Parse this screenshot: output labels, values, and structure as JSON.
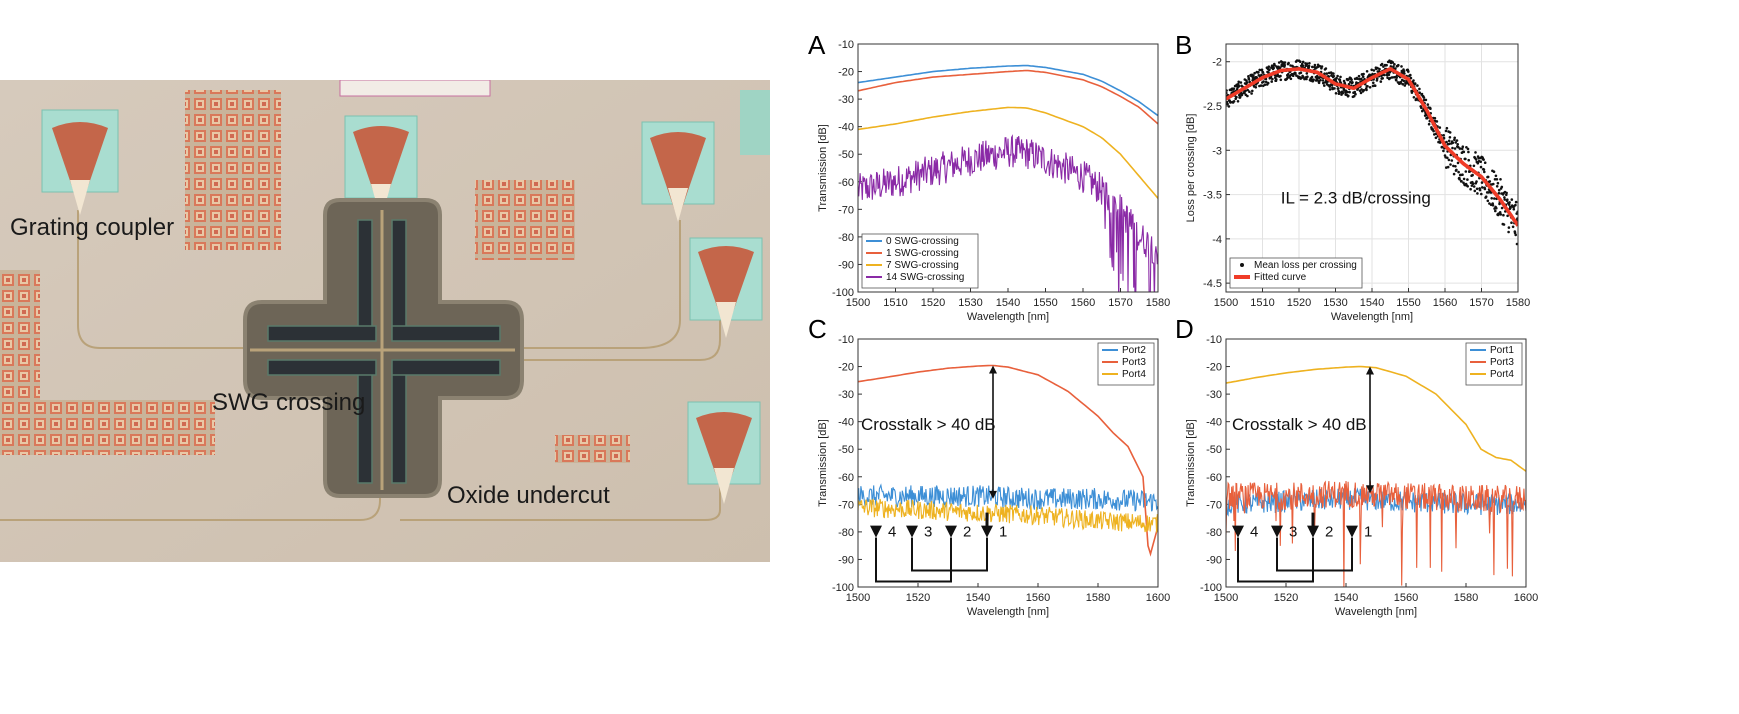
{
  "figure": {
    "photo_labels": {
      "grating_coupler": "Grating coupler",
      "swg_crossing": "SWG crossing",
      "oxide_undercut": "Oxide undercut"
    },
    "panels": [
      "A",
      "B",
      "C",
      "D"
    ]
  },
  "colors": {
    "blue": "#3d8fd6",
    "red": "#e8603c",
    "orange": "#eeb220",
    "purple": "#8a2aa6",
    "black": "#111111",
    "fit": "#f03c28"
  },
  "chart_data": [
    {
      "panel": "A",
      "type": "line",
      "xlabel": "Wavelength [nm]",
      "ylabel": "Transmission [dB]",
      "xlim": [
        1500,
        1580
      ],
      "ylim": [
        -100,
        -10
      ],
      "xticks": [
        "1500",
        "1510",
        "1520",
        "1530",
        "1540",
        "1550",
        "1560",
        "1570",
        "1580"
      ],
      "yticks": [
        "-10",
        "-20",
        "-30",
        "-40",
        "-50",
        "-60",
        "-70",
        "-80",
        "-90",
        "-100"
      ],
      "legend_position": "bottom-left",
      "series": [
        {
          "name": "0 SWG-crossing",
          "color": "#3d8fd6",
          "x": [
            1500,
            1510,
            1520,
            1530,
            1540,
            1545,
            1550,
            1560,
            1565,
            1570,
            1575,
            1580
          ],
          "y": [
            -24,
            -22,
            -20,
            -18.8,
            -18,
            -17.8,
            -18.5,
            -21,
            -23.5,
            -27,
            -31,
            -36
          ]
        },
        {
          "name": "1 SWG-crossing",
          "color": "#e8603c",
          "x": [
            1500,
            1510,
            1520,
            1530,
            1540,
            1545,
            1550,
            1560,
            1565,
            1570,
            1575,
            1580
          ],
          "y": [
            -27,
            -24,
            -22,
            -21,
            -20,
            -19.6,
            -20.3,
            -23,
            -25.5,
            -29,
            -33,
            -39
          ]
        },
        {
          "name": "7 SWG-crossing",
          "color": "#eeb220",
          "x": [
            1500,
            1510,
            1520,
            1530,
            1540,
            1545,
            1550,
            1560,
            1565,
            1570,
            1575,
            1580
          ],
          "y": [
            -41,
            -39,
            -36.5,
            -34.5,
            -33,
            -33.2,
            -35,
            -40,
            -44,
            -50,
            -58,
            -66
          ]
        },
        {
          "name": "14 SWG-crossing",
          "color": "#8a2aa6",
          "x": [
            1500,
            1510,
            1520,
            1530,
            1540,
            1545,
            1550,
            1560,
            1565,
            1570,
            1575,
            1580
          ],
          "y": [
            -63,
            -60,
            -56,
            -52,
            -49,
            -49.5,
            -52,
            -58,
            -63,
            -70,
            -80,
            -85
          ],
          "noise": 6
        }
      ]
    },
    {
      "panel": "B",
      "type": "scatter",
      "xlabel": "Wavelength [nm]",
      "ylabel": "Loss per crossing [dB]",
      "xlim": [
        1500,
        1580
      ],
      "ylim": [
        -4.6,
        -1.8
      ],
      "xticks": [
        "1500",
        "1510",
        "1520",
        "1530",
        "1540",
        "1550",
        "1560",
        "1570",
        "1580"
      ],
      "yticks": [
        "-2",
        "-2.5",
        "-3",
        "-3.5",
        "-4",
        "-4.5"
      ],
      "yticks_values": [
        -2,
        -2.5,
        -3,
        -3.5,
        -4,
        -4.5
      ],
      "grid": true,
      "legend_position": "bottom-left",
      "annotation": "IL = 2.3 dB/crossing",
      "series": [
        {
          "name": "Mean loss per crossing",
          "color": "#111111",
          "marker": "dot"
        },
        {
          "name": "Fitted curve",
          "color": "#f03c28",
          "x": [
            1500,
            1505,
            1510,
            1515,
            1520,
            1525,
            1530,
            1535,
            1540,
            1545,
            1550,
            1555,
            1560,
            1565,
            1570,
            1575,
            1580
          ],
          "y": [
            -2.42,
            -2.3,
            -2.18,
            -2.1,
            -2.08,
            -2.12,
            -2.25,
            -2.3,
            -2.18,
            -2.08,
            -2.2,
            -2.55,
            -2.95,
            -3.15,
            -3.3,
            -3.55,
            -3.85
          ]
        }
      ]
    },
    {
      "panel": "C",
      "type": "line",
      "xlabel": "Wavelength [nm]",
      "ylabel": "Transmission [dB]",
      "xlim": [
        1500,
        1600
      ],
      "ylim": [
        -100,
        -10
      ],
      "xticks": [
        "1500",
        "1520",
        "1540",
        "1560",
        "1580",
        "1600"
      ],
      "yticks": [
        "-10",
        "-20",
        "-30",
        "-40",
        "-50",
        "-60",
        "-70",
        "-80",
        "-90",
        "-100"
      ],
      "legend_position": "top-right",
      "annotation": "Crosstalk > 40 dB",
      "ports_diagram": [
        "4",
        "3",
        "2",
        "1"
      ],
      "series": [
        {
          "name": "Port2",
          "color": "#3d8fd6",
          "x": [
            1500,
            1520,
            1540,
            1560,
            1580,
            1600
          ],
          "y": [
            -67,
            -67,
            -67,
            -68,
            -68,
            -69
          ],
          "noise": 4
        },
        {
          "name": "Port3",
          "color": "#e8603c",
          "x": [
            1500,
            1510,
            1520,
            1530,
            1540,
            1545,
            1550,
            1560,
            1570,
            1580,
            1585,
            1590,
            1595,
            1597,
            1600
          ],
          "y": [
            -25.5,
            -23.8,
            -22,
            -20.6,
            -19.8,
            -19.6,
            -20.2,
            -23,
            -29,
            -38,
            -44,
            -49,
            -60,
            -90,
            -78
          ]
        },
        {
          "name": "Port4",
          "color": "#eeb220",
          "x": [
            1500,
            1520,
            1540,
            1560,
            1580,
            1600
          ],
          "y": [
            -71,
            -72,
            -73,
            -74,
            -76,
            -77
          ],
          "noise": 3.5
        }
      ]
    },
    {
      "panel": "D",
      "type": "line",
      "xlabel": "Wavelength [nm]",
      "ylabel": "Transmission [dB]",
      "xlim": [
        1500,
        1600
      ],
      "ylim": [
        -100,
        -10
      ],
      "xticks": [
        "1500",
        "1520",
        "1540",
        "1560",
        "1580",
        "1600"
      ],
      "yticks": [
        "-10",
        "-20",
        "-30",
        "-40",
        "-50",
        "-60",
        "-70",
        "-80",
        "-90",
        "-100"
      ],
      "legend_position": "top-right",
      "annotation": "Crosstalk > 40 dB",
      "ports_diagram": [
        "4",
        "3",
        "2",
        "1"
      ],
      "series": [
        {
          "name": "Port1",
          "color": "#3d8fd6",
          "x": [
            1500,
            1520,
            1540,
            1560,
            1580,
            1600
          ],
          "y": [
            -70,
            -69,
            -68,
            -69,
            -70,
            -70
          ],
          "noise": 4
        },
        {
          "name": "Port3",
          "color": "#e8603c",
          "x": [
            1500,
            1520,
            1540,
            1560,
            1580,
            1600
          ],
          "y": [
            -67,
            -67,
            -66,
            -67,
            -68,
            -68
          ],
          "noise": 5,
          "dips": true
        },
        {
          "name": "Port4",
          "color": "#eeb220",
          "x": [
            1500,
            1510,
            1520,
            1530,
            1540,
            1545,
            1550,
            1560,
            1570,
            1580,
            1585,
            1590,
            1595,
            1600
          ],
          "y": [
            -26,
            -24,
            -22.3,
            -21,
            -20.2,
            -20,
            -20.4,
            -23.5,
            -30,
            -41,
            -50,
            -53,
            -54,
            -58
          ]
        }
      ]
    }
  ]
}
